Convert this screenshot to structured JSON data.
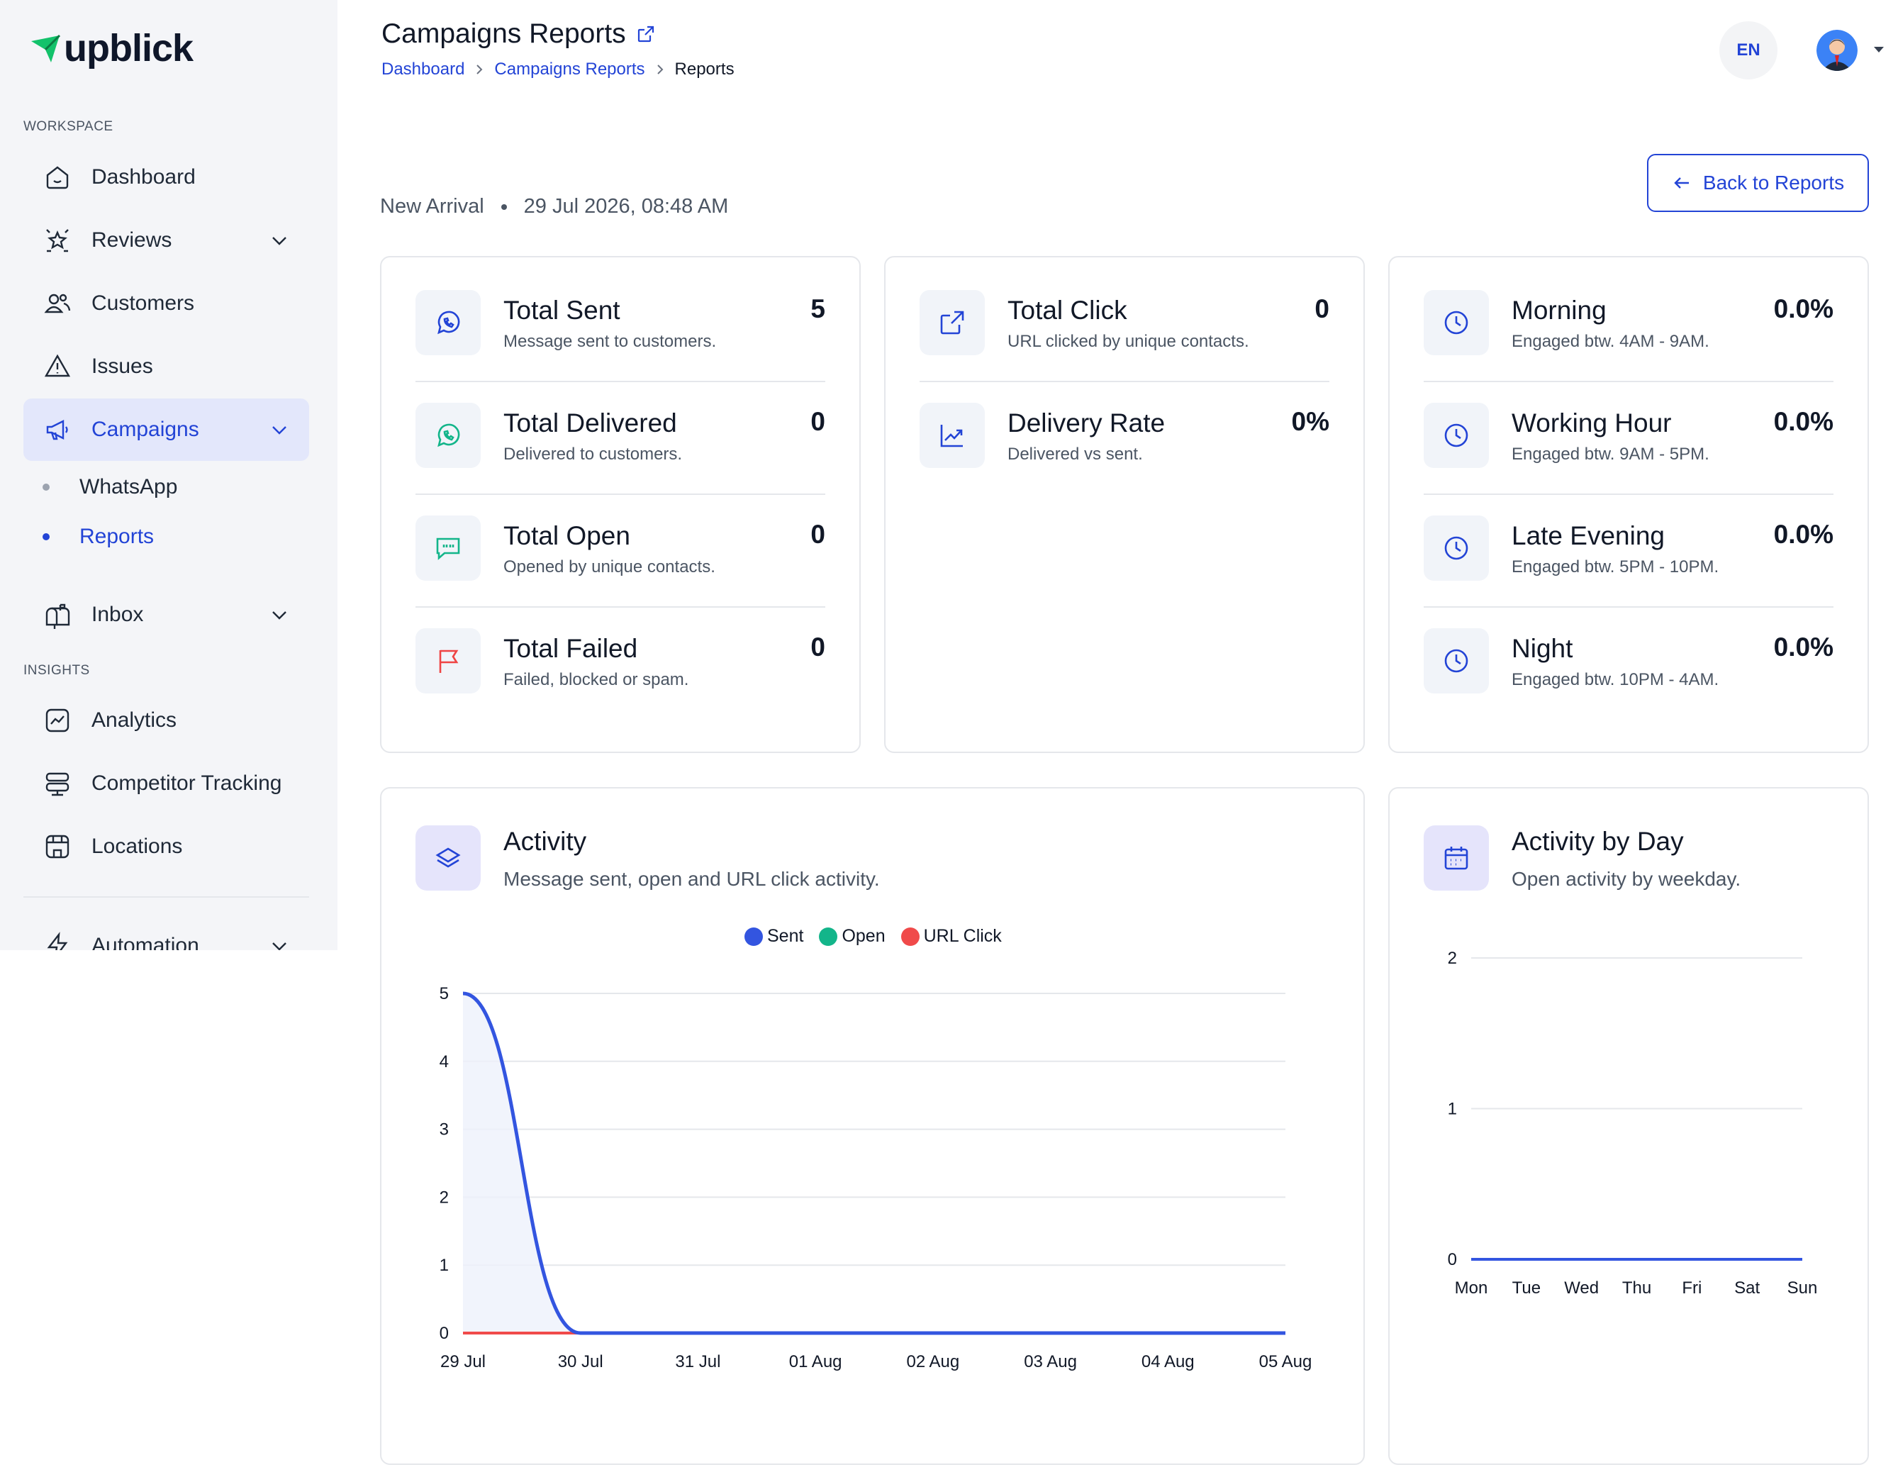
{
  "app": {
    "logo_text": "upblick"
  },
  "sidebar": {
    "workspace_label": "WORKSPACE",
    "insights_label": "INSIGHTS",
    "items": [
      {
        "label": "Dashboard",
        "icon": "dashboard-icon"
      },
      {
        "label": "Reviews",
        "icon": "reviews-icon"
      },
      {
        "label": "Customers",
        "icon": "customers-icon"
      },
      {
        "label": "Issues",
        "icon": "issues-icon"
      },
      {
        "label": "Campaigns",
        "icon": "megaphone-icon"
      },
      {
        "label": "Inbox",
        "icon": "mailbox-icon"
      },
      {
        "label": "Analytics",
        "icon": "analytics-icon"
      },
      {
        "label": "Competitor Tracking",
        "icon": "competitor-icon"
      },
      {
        "label": "Locations",
        "icon": "store-icon"
      },
      {
        "label": "Automation",
        "icon": "automation-icon"
      }
    ],
    "campaign_subitems": [
      {
        "label": "WhatsApp"
      },
      {
        "label": "Reports"
      }
    ]
  },
  "header": {
    "title": "Campaigns Reports",
    "breadcrumb": [
      "Dashboard",
      "Campaigns Reports",
      "Reports"
    ],
    "language": "EN"
  },
  "campaign": {
    "name": "New Arrival",
    "datetime": "29 Jul 2026, 08:48 AM",
    "back_label": "Back to Reports"
  },
  "stats_left": [
    {
      "title": "Total Sent",
      "sub": "Message sent to customers.",
      "value": "5",
      "icon": "whatsapp-icon"
    },
    {
      "title": "Total Delivered",
      "sub": "Delivered to customers.",
      "value": "0",
      "icon": "whatsapp-green-icon"
    },
    {
      "title": "Total Open",
      "sub": "Opened by unique contacts.",
      "value": "0",
      "icon": "chat-quote-icon"
    },
    {
      "title": "Total Failed",
      "sub": "Failed, blocked or spam.",
      "value": "0",
      "icon": "flag-icon"
    }
  ],
  "stats_mid": [
    {
      "title": "Total Click",
      "sub": "URL clicked by unique contacts.",
      "value": "0",
      "icon": "external-link-icon"
    },
    {
      "title": "Delivery Rate",
      "sub": "Delivered vs sent.",
      "value": "0%",
      "icon": "trend-icon"
    }
  ],
  "stats_right": [
    {
      "title": "Morning",
      "sub": "Engaged btw. 4AM - 9AM.",
      "value": "0.0%",
      "icon": "clock-icon"
    },
    {
      "title": "Working Hour",
      "sub": "Engaged btw. 9AM - 5PM.",
      "value": "0.0%",
      "icon": "clock-icon"
    },
    {
      "title": "Late Evening",
      "sub": "Engaged btw. 5PM - 10PM.",
      "value": "0.0%",
      "icon": "clock-icon"
    },
    {
      "title": "Night",
      "sub": "Engaged btw. 10PM - 4AM.",
      "value": "0.0%",
      "icon": "clock-icon"
    }
  ],
  "activity": {
    "title": "Activity",
    "sub": "Message sent, open and URL click activity.",
    "icon": "layers-icon"
  },
  "activity_by_day": {
    "title": "Activity by Day",
    "sub": "Open activity by weekday.",
    "icon": "calendar-icon"
  },
  "colors": {
    "accent": "#2344d6",
    "sent": "#3355e0",
    "open": "#13b58a",
    "url_click": "#f04a4a",
    "day_line": "#3355e0"
  },
  "chart_data": [
    {
      "type": "line",
      "categories": [
        "29 Jul",
        "30 Jul",
        "31 Jul",
        "01 Aug",
        "02 Aug",
        "03 Aug",
        "04 Aug",
        "05 Aug"
      ],
      "series": [
        {
          "name": "Sent",
          "values": [
            5,
            0,
            0,
            0,
            0,
            0,
            0,
            0
          ]
        },
        {
          "name": "Open",
          "values": [
            0,
            0,
            0,
            0,
            0,
            0,
            0,
            0
          ]
        },
        {
          "name": "URL Click",
          "values": [
            0,
            0,
            0,
            0,
            0,
            0,
            0,
            0
          ]
        }
      ],
      "ylim": [
        0,
        5
      ],
      "yticks": [
        0,
        1,
        2,
        3,
        4,
        5
      ],
      "legend": "top-center",
      "grid": true
    },
    {
      "type": "line",
      "categories": [
        "Mon",
        "Tue",
        "Wed",
        "Thu",
        "Fri",
        "Sat",
        "Sun"
      ],
      "series": [
        {
          "values": [
            0,
            0,
            0,
            0,
            0,
            0,
            0
          ]
        }
      ],
      "ylim": [
        0,
        2
      ],
      "yticks": [
        0,
        1,
        2
      ],
      "grid": true
    }
  ]
}
